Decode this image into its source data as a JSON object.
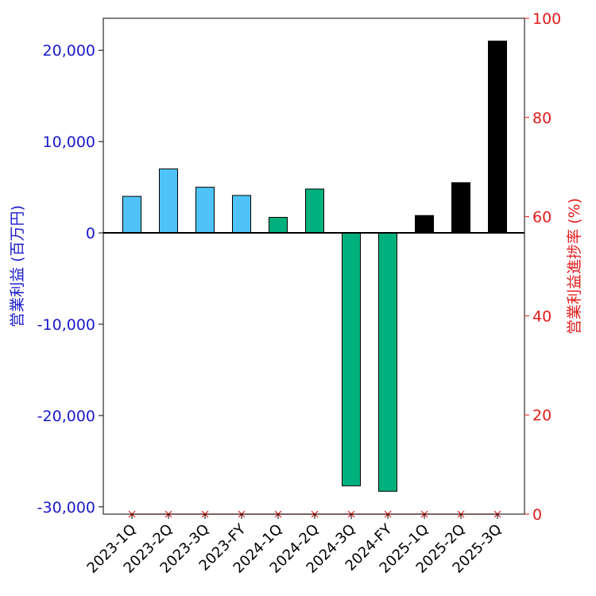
{
  "chart_data": {
    "type": "bar",
    "categories": [
      "2023-1Q",
      "2023-2Q",
      "2023-3Q",
      "2023-FY",
      "2024-1Q",
      "2024-2Q",
      "2024-3Q",
      "2024-FY",
      "2025-1Q",
      "2025-2Q",
      "2025-3Q"
    ],
    "series": [
      {
        "name": "",
        "values": [
          4000,
          7000,
          5000,
          4100,
          1700,
          4800,
          -27700,
          -28300,
          1900,
          5500,
          21000
        ],
        "colors": [
          "#4fc3f7",
          "#4fc3f7",
          "#4fc3f7",
          "#4fc3f7",
          "#00b07d",
          "#00b07d",
          "#00b07d",
          "#00b07d",
          "#000000",
          "#000000",
          "#000000"
        ]
      }
    ],
    "secondary_series": {
      "name": "",
      "axis": "right",
      "marker": "x",
      "color": "#e31a1a",
      "values": [
        0,
        0,
        0,
        0,
        0,
        0,
        0,
        0,
        0,
        0,
        0
      ]
    },
    "ylabel": "営業利益 (百万円)",
    "ylabel_right": "営業利益進捗率 (%)",
    "ylim": [
      -30800,
      23500
    ],
    "ylim_right": [
      0,
      100
    ],
    "yticks": [
      -30000,
      -20000,
      -10000,
      0,
      10000,
      20000
    ],
    "ytick_labels": [
      "-30,000",
      "-20,000",
      "-10,000",
      "0",
      "10,000",
      "20,000"
    ],
    "yticks_right": [
      0,
      20,
      40,
      60,
      80,
      100
    ],
    "ytick_labels_right": [
      "0",
      "20",
      "40",
      "60",
      "80",
      "100"
    ],
    "colors": {
      "left_axis": "#1a1acc",
      "right_axis": "#e31a1a"
    },
    "grid": false,
    "legend": "none"
  }
}
